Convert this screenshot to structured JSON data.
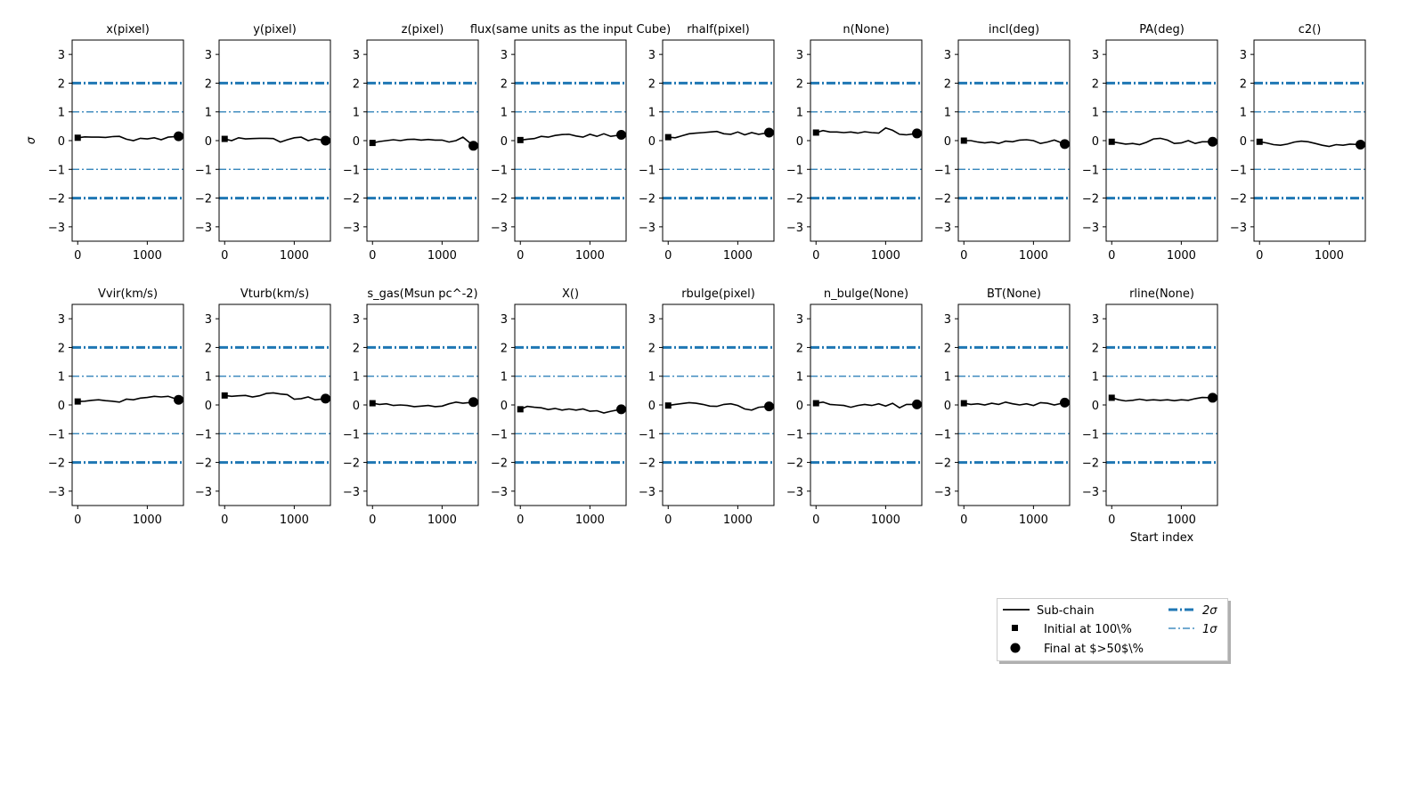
{
  "figure": {
    "ylabel": "σ",
    "xlabel": "Start index",
    "yticks": [
      -3,
      -2,
      -1,
      0,
      1,
      2,
      3
    ],
    "xticks": [
      0,
      1000
    ],
    "ylim": [
      -3.5,
      3.5
    ],
    "xlim": [
      -80,
      1520
    ],
    "colors": {
      "chain": "#000000",
      "band": "#1f77b4",
      "axis": "#000000"
    }
  },
  "legend": {
    "entries": [
      {
        "key": "subchain",
        "label": "Sub-chain"
      },
      {
        "key": "initial",
        "label": "Initial at 100\\%"
      },
      {
        "key": "final",
        "label": "Final at $>50$\\%"
      },
      {
        "key": "two_sigma",
        "label": "2σ"
      },
      {
        "key": "one_sigma",
        "label": "1σ"
      }
    ]
  },
  "chart_data": [
    {
      "type": "line",
      "title": "x(pixel)",
      "x": [
        0,
        100,
        200,
        300,
        400,
        500,
        600,
        700,
        800,
        900,
        1000,
        1100,
        1200,
        1300,
        1450
      ],
      "y": [
        0.1,
        0.13,
        0.12,
        0.12,
        0.11,
        0.14,
        0.15,
        0.05,
        0.0,
        0.08,
        0.06,
        0.1,
        0.03,
        0.12,
        0.15
      ]
    },
    {
      "type": "line",
      "title": "y(pixel)",
      "x": [
        0,
        100,
        200,
        300,
        400,
        500,
        600,
        700,
        800,
        900,
        1000,
        1100,
        1200,
        1300,
        1450
      ],
      "y": [
        0.06,
        0.0,
        0.1,
        0.06,
        0.07,
        0.08,
        0.08,
        0.07,
        -0.05,
        0.03,
        0.1,
        0.12,
        0.0,
        0.06,
        0.0
      ]
    },
    {
      "type": "line",
      "title": "z(pixel)",
      "x": [
        0,
        100,
        200,
        300,
        400,
        500,
        600,
        700,
        800,
        900,
        1000,
        1100,
        1200,
        1300,
        1450
      ],
      "y": [
        -0.08,
        -0.03,
        0.0,
        0.03,
        0.0,
        0.04,
        0.05,
        0.02,
        0.04,
        0.02,
        0.02,
        -0.05,
        0.0,
        0.12,
        -0.18
      ]
    },
    {
      "type": "line",
      "title": "flux(same units as the input Cube)",
      "x": [
        0,
        100,
        200,
        300,
        400,
        500,
        600,
        700,
        800,
        900,
        1000,
        1100,
        1200,
        1300,
        1450
      ],
      "y": [
        0.02,
        0.05,
        0.07,
        0.15,
        0.12,
        0.18,
        0.21,
        0.22,
        0.16,
        0.12,
        0.22,
        0.15,
        0.24,
        0.15,
        0.2
      ]
    },
    {
      "type": "line",
      "title": "rhalf(pixel)",
      "x": [
        0,
        100,
        200,
        300,
        400,
        500,
        600,
        700,
        800,
        900,
        1000,
        1100,
        1200,
        1300,
        1450
      ],
      "y": [
        0.12,
        0.1,
        0.17,
        0.24,
        0.26,
        0.28,
        0.3,
        0.32,
        0.24,
        0.22,
        0.3,
        0.2,
        0.28,
        0.22,
        0.28
      ]
    },
    {
      "type": "line",
      "title": "n(None)",
      "x": [
        0,
        100,
        200,
        300,
        400,
        500,
        600,
        700,
        800,
        900,
        1000,
        1100,
        1200,
        1300,
        1450
      ],
      "y": [
        0.28,
        0.35,
        0.3,
        0.3,
        0.28,
        0.3,
        0.26,
        0.31,
        0.28,
        0.26,
        0.44,
        0.36,
        0.22,
        0.2,
        0.25
      ]
    },
    {
      "type": "line",
      "title": "incl(deg)",
      "x": [
        0,
        100,
        200,
        300,
        400,
        500,
        600,
        700,
        800,
        900,
        1000,
        1100,
        1200,
        1300,
        1450
      ],
      "y": [
        0.0,
        0.0,
        -0.05,
        -0.08,
        -0.05,
        -0.1,
        -0.02,
        -0.04,
        0.02,
        0.03,
        0.0,
        -0.1,
        -0.05,
        0.02,
        -0.12
      ]
    },
    {
      "type": "line",
      "title": "PA(deg)",
      "x": [
        0,
        100,
        200,
        300,
        400,
        500,
        600,
        700,
        800,
        900,
        1000,
        1100,
        1200,
        1300,
        1450
      ],
      "y": [
        -0.04,
        -0.08,
        -0.12,
        -0.1,
        -0.14,
        -0.06,
        0.06,
        0.08,
        0.02,
        -0.1,
        -0.08,
        0.0,
        -0.1,
        -0.04,
        -0.04
      ]
    },
    {
      "type": "line",
      "title": "c2()",
      "x": [
        0,
        100,
        200,
        300,
        400,
        500,
        600,
        700,
        800,
        900,
        1000,
        1100,
        1200,
        1300,
        1450
      ],
      "y": [
        -0.04,
        -0.08,
        -0.14,
        -0.16,
        -0.12,
        -0.05,
        -0.02,
        -0.04,
        -0.1,
        -0.16,
        -0.2,
        -0.14,
        -0.16,
        -0.12,
        -0.14
      ]
    },
    {
      "type": "line",
      "title": "Vvir(km/s)",
      "x": [
        0,
        100,
        200,
        300,
        400,
        500,
        600,
        700,
        800,
        900,
        1000,
        1100,
        1200,
        1300,
        1450
      ],
      "y": [
        0.12,
        0.13,
        0.16,
        0.18,
        0.15,
        0.13,
        0.1,
        0.2,
        0.18,
        0.24,
        0.26,
        0.3,
        0.28,
        0.3,
        0.18
      ]
    },
    {
      "type": "line",
      "title": "Vturb(km/s)",
      "x": [
        0,
        100,
        200,
        300,
        400,
        500,
        600,
        700,
        800,
        900,
        1000,
        1100,
        1200,
        1300,
        1450
      ],
      "y": [
        0.33,
        0.3,
        0.32,
        0.33,
        0.28,
        0.32,
        0.4,
        0.42,
        0.38,
        0.36,
        0.2,
        0.22,
        0.28,
        0.18,
        0.22
      ]
    },
    {
      "type": "line",
      "title": "s_gas(Msun pc^-2)",
      "x": [
        0,
        100,
        200,
        300,
        400,
        500,
        600,
        700,
        800,
        900,
        1000,
        1100,
        1200,
        1300,
        1450
      ],
      "y": [
        0.06,
        0.02,
        0.04,
        -0.02,
        0.0,
        -0.02,
        -0.06,
        -0.04,
        -0.02,
        -0.06,
        -0.04,
        0.04,
        0.1,
        0.06,
        0.1
      ]
    },
    {
      "type": "line",
      "title": "X()",
      "x": [
        0,
        100,
        200,
        300,
        400,
        500,
        600,
        700,
        800,
        900,
        1000,
        1100,
        1200,
        1300,
        1450
      ],
      "y": [
        -0.15,
        -0.05,
        -0.08,
        -0.1,
        -0.16,
        -0.12,
        -0.18,
        -0.14,
        -0.18,
        -0.14,
        -0.22,
        -0.2,
        -0.28,
        -0.22,
        -0.15
      ]
    },
    {
      "type": "line",
      "title": "rbulge(pixel)",
      "x": [
        0,
        100,
        200,
        300,
        400,
        500,
        600,
        700,
        800,
        900,
        1000,
        1100,
        1200,
        1300,
        1450
      ],
      "y": [
        -0.02,
        0.02,
        0.05,
        0.08,
        0.06,
        0.02,
        -0.04,
        -0.05,
        0.02,
        0.04,
        -0.02,
        -0.14,
        -0.18,
        -0.08,
        -0.05
      ]
    },
    {
      "type": "line",
      "title": "n_bulge(None)",
      "x": [
        0,
        100,
        200,
        300,
        400,
        500,
        600,
        700,
        800,
        900,
        1000,
        1100,
        1200,
        1300,
        1450
      ],
      "y": [
        0.06,
        0.1,
        0.02,
        0.0,
        -0.02,
        -0.08,
        -0.02,
        0.02,
        -0.02,
        0.04,
        -0.04,
        0.06,
        -0.1,
        0.02,
        0.02
      ]
    },
    {
      "type": "line",
      "title": "BT(None)",
      "x": [
        0,
        100,
        200,
        300,
        400,
        500,
        600,
        700,
        800,
        900,
        1000,
        1100,
        1200,
        1300,
        1450
      ],
      "y": [
        0.06,
        0.02,
        0.04,
        0.0,
        0.06,
        0.02,
        0.1,
        0.04,
        0.0,
        0.04,
        -0.02,
        0.08,
        0.06,
        0.0,
        0.08
      ]
    },
    {
      "type": "line",
      "title": "rline(None)",
      "x": [
        0,
        100,
        200,
        300,
        400,
        500,
        600,
        700,
        800,
        900,
        1000,
        1100,
        1200,
        1300,
        1450
      ],
      "y": [
        0.25,
        0.18,
        0.14,
        0.16,
        0.2,
        0.16,
        0.18,
        0.16,
        0.18,
        0.15,
        0.18,
        0.16,
        0.22,
        0.26,
        0.25
      ]
    }
  ]
}
